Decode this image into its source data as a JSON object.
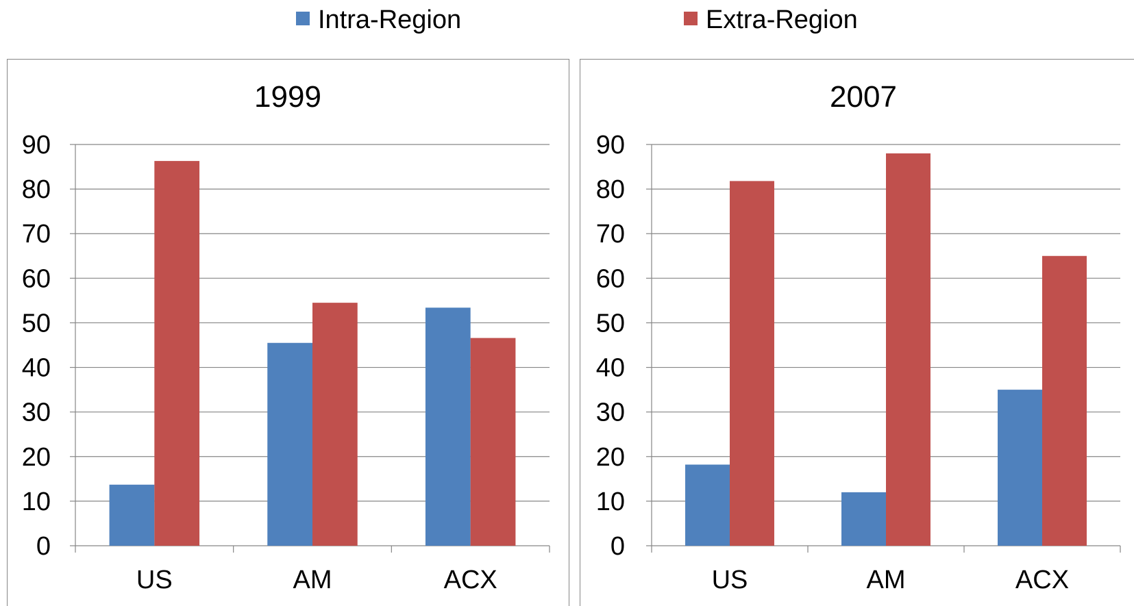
{
  "legend": [
    {
      "label": "Intra-Region",
      "color": "#4F81BD"
    },
    {
      "label": "Extra-Region",
      "color": "#C0504D"
    }
  ],
  "chart_data": [
    {
      "type": "bar",
      "title": "1999",
      "categories": [
        "US",
        "AM",
        "ACX"
      ],
      "series": [
        {
          "name": "Intra-Region",
          "values": [
            13.7,
            45.5,
            53.4
          ]
        },
        {
          "name": "Extra-Region",
          "values": [
            86.3,
            54.5,
            46.6
          ]
        }
      ],
      "ylim": [
        0,
        90
      ],
      "yticks": [
        0,
        10,
        20,
        30,
        40,
        50,
        60,
        70,
        80,
        90
      ],
      "grid": true,
      "legend_position": "top"
    },
    {
      "type": "bar",
      "title": "2007",
      "categories": [
        "US",
        "AM",
        "ACX"
      ],
      "series": [
        {
          "name": "Intra-Region",
          "values": [
            18.2,
            12.0,
            35.0
          ]
        },
        {
          "name": "Extra-Region",
          "values": [
            81.8,
            88.0,
            65.0
          ]
        }
      ],
      "ylim": [
        0,
        90
      ],
      "yticks": [
        0,
        10,
        20,
        30,
        40,
        50,
        60,
        70,
        80,
        90
      ],
      "grid": true,
      "legend_position": "top"
    }
  ]
}
